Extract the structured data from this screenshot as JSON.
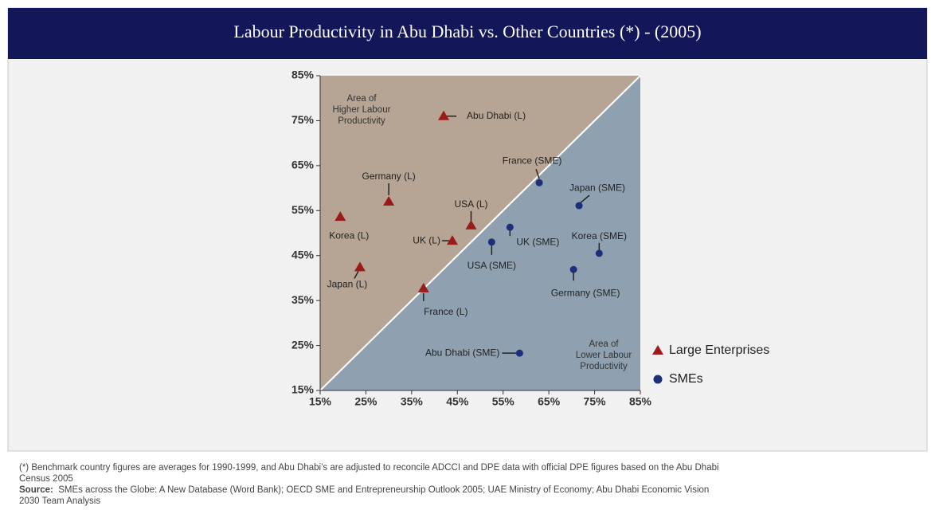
{
  "chart_data": {
    "type": "scatter",
    "title": "Labour Productivity in Abu Dhabi vs. Other Countries (*) - (2005)",
    "xlim": [
      15,
      85
    ],
    "ylim": [
      15,
      85
    ],
    "xticks": [
      {
        "value": 15,
        "label": "15%"
      },
      {
        "value": 25,
        "label": "25%"
      },
      {
        "value": 35,
        "label": "35%"
      },
      {
        "value": 45,
        "label": "45%"
      },
      {
        "value": 55,
        "label": "55%"
      },
      {
        "value": 65,
        "label": "65%"
      },
      {
        "value": 75,
        "label": "75%"
      },
      {
        "value": 85,
        "label": "85%"
      }
    ],
    "yticks": [
      {
        "value": 15,
        "label": "15%"
      },
      {
        "value": 25,
        "label": "25%"
      },
      {
        "value": 35,
        "label": "35%"
      },
      {
        "value": 45,
        "label": "45%"
      },
      {
        "value": 55,
        "label": "55%"
      },
      {
        "value": 65,
        "label": "65%"
      },
      {
        "value": 75,
        "label": "75%"
      },
      {
        "value": 85,
        "label": "85%"
      }
    ],
    "annotations": {
      "upper": [
        "Area of",
        "Higher Labour",
        "Productivity"
      ],
      "lower": [
        "Area of",
        "Lower Labour",
        "Productivity"
      ]
    },
    "series": [
      {
        "name": "Large Enterprises",
        "color": "#9b1b1b",
        "marker": "triangle",
        "labels": [
          "Abu Dhabi (L)",
          "Germany (L)",
          "Korea (L)",
          "Japan (L)",
          "UK (L)",
          "USA (L)",
          "France (L)"
        ],
        "x": [
          42,
          30,
          19.4,
          23.7,
          43.9,
          48,
          37.6
        ],
        "values": [
          76,
          57,
          53.6,
          42.4,
          48.3,
          51.7,
          37.7
        ]
      },
      {
        "name": "SMEs",
        "color": "#1e2f7a",
        "marker": "circle",
        "labels": [
          "France (SME)",
          "Japan (SME)",
          "UK (SME)",
          "USA (SME)",
          "Korea (SME)",
          "Germany (SME)",
          "Abu Dhabi (SME)"
        ],
        "x": [
          62.9,
          71.6,
          56.5,
          52.5,
          76,
          70.4,
          58.6
        ],
        "values": [
          61.2,
          56.1,
          51.3,
          48,
          45.5,
          41.9,
          23.3
        ]
      }
    ],
    "notes": {
      "footnote": "(*)  Benchmark country figures are averages for 1990-1999, and Abu Dhabi’s are adjusted to reconcile ADCCI and DPE data with official DPE figures based on the Abu Dhabi Census 2005",
      "source_label": "Source:",
      "source": "SMEs across the Globe: A New Database (Word Bank); OECD SME and Entrepreneurship Outlook 2005; UAE Ministry of Economy; Abu Dhabi Economic Vision 2030 Team Analysis"
    }
  }
}
